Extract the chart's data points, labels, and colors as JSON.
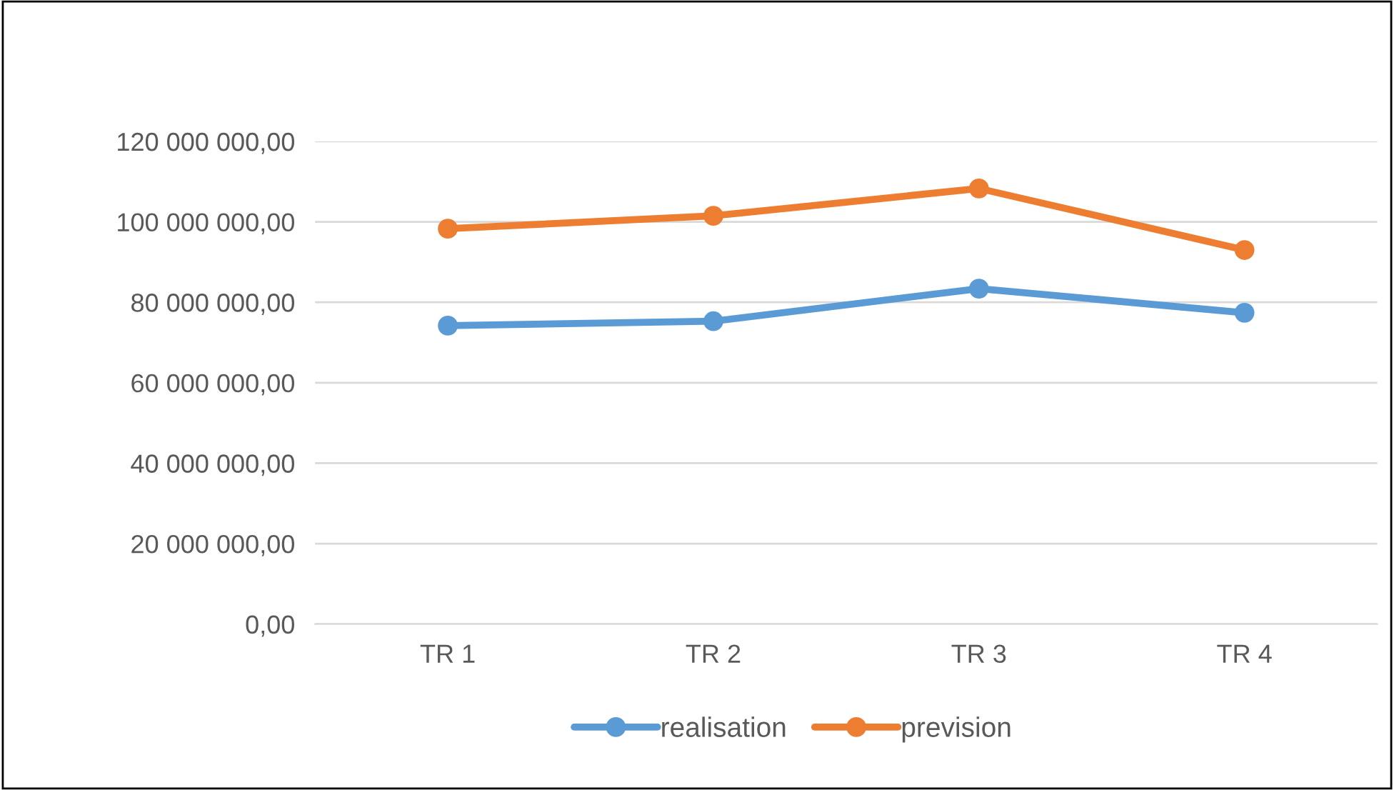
{
  "chart_data": {
    "type": "line",
    "categories": [
      "TR 1",
      "TR 2",
      "TR 3",
      "TR 4"
    ],
    "series": [
      {
        "name": "realisation",
        "color": "#5b9bd5",
        "values": [
          74200000,
          75300000,
          83400000,
          77400000
        ]
      },
      {
        "name": "prevision",
        "color": "#ed7d31",
        "values": [
          98300000,
          101500000,
          108300000,
          93000000
        ]
      }
    ],
    "ylim": [
      0,
      120000000
    ],
    "yticks": [
      {
        "value": 0,
        "label": "0,00"
      },
      {
        "value": 20000000,
        "label": "20 000 000,00"
      },
      {
        "value": 40000000,
        "label": "40 000 000,00"
      },
      {
        "value": 60000000,
        "label": "60 000 000,00"
      },
      {
        "value": 80000000,
        "label": "80 000 000,00"
      },
      {
        "value": 100000000,
        "label": "100 000 000,00"
      },
      {
        "value": 120000000,
        "label": "120 000 000,00"
      }
    ],
    "grid": "y",
    "legend": "bottom",
    "marker": "circle",
    "line_style": "solid"
  }
}
